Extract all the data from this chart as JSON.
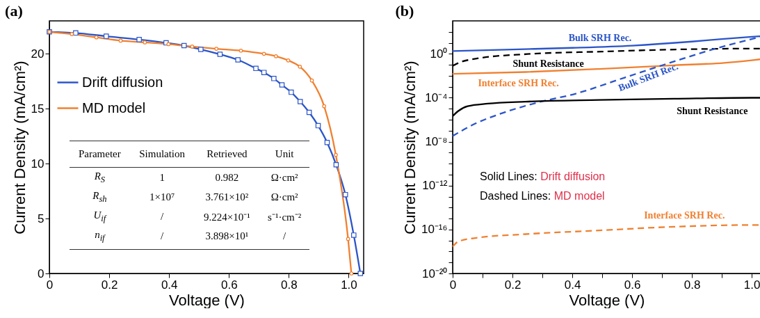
{
  "chart_data": [
    {
      "type": "line",
      "title": "(a)",
      "xlabel": "Voltage (V)",
      "ylabel": "Current Density (mA/cm²)",
      "xlim": [
        0,
        1.05
      ],
      "xticks": [
        0,
        0.2,
        0.4,
        0.6,
        0.8,
        {
          "value": 1,
          "label": "1.0"
        }
      ],
      "ylim": [
        0,
        23
      ],
      "yticks": [
        0,
        5,
        10,
        15,
        20
      ],
      "grid": false,
      "legend": "top left",
      "series": [
        {
          "name": "Drift diffusion",
          "color": "#2b55c8",
          "marker": "square",
          "line_style": "solid",
          "x": [
            0,
            0.088,
            0.19,
            0.3,
            0.39,
            0.45,
            0.506,
            0.57,
            0.63,
            0.69,
            0.717,
            0.75,
            0.777,
            0.808,
            0.838,
            0.868,
            0.898,
            0.928,
            0.958,
            0.989,
            1.017,
            1.039
          ],
          "values": [
            22.0,
            21.9,
            21.6,
            21.3,
            21.0,
            20.75,
            20.4,
            19.96,
            19.45,
            18.67,
            18.3,
            17.75,
            17.17,
            16.5,
            15.65,
            14.67,
            13.46,
            11.93,
            9.9,
            7.18,
            3.49,
            0
          ]
        },
        {
          "name": "MD model",
          "color": "#f08030",
          "marker": "circle",
          "line_style": "solid",
          "x": [
            0,
            0.075,
            0.157,
            0.238,
            0.319,
            0.398,
            0.477,
            0.558,
            0.64,
            0.717,
            0.757,
            0.798,
            0.837,
            0.877,
            0.918,
            0.957,
            0.998,
            1.009
          ],
          "values": [
            22.0,
            21.8,
            21.5,
            21.2,
            21.04,
            20.88,
            20.66,
            20.46,
            20.29,
            20.0,
            19.78,
            19.4,
            18.83,
            17.57,
            15.23,
            10.8,
            3.14,
            0
          ]
        }
      ],
      "annotations": [
        "Parameter",
        "Simulation",
        "Retrieved",
        "Unit",
        "R$_{S}$",
        "1",
        "0.982",
        "Ω·cm²",
        "R$_{sh}$",
        "1×10⁷",
        "3.761×10²",
        "Ω·cm²",
        "U$_{if}$",
        "/",
        "9.224×10⁻¹",
        "s⁻¹·cm⁻²",
        "n$_{if}$",
        "/",
        "3.898×10¹",
        "/"
      ]
    },
    {
      "type": "line",
      "title": "(b)",
      "xlabel": "Voltage (V)",
      "ylabel": "Current Density (mA/cm²)",
      "log": "y",
      "xlim": [
        0,
        1.03
      ],
      "xticks": [
        0,
        {
          "value": 0.1,
          "label": null
        },
        0.2,
        {
          "value": 0.3,
          "label": null
        },
        0.4,
        {
          "value": 0.5,
          "label": null
        },
        0.6,
        {
          "value": 0.7,
          "label": null
        },
        0.8,
        {
          "value": 0.9,
          "label": null
        },
        {
          "value": 1,
          "label": "1.0"
        }
      ],
      "ylim": [
        1e-20,
        1000
      ],
      "yticks": [
        {
          "value": 1e-20,
          "label": "10⁻²⁰"
        },
        {
          "value": 1e-19,
          "label": null
        },
        {
          "value": 1e-18,
          "label": null
        },
        {
          "value": 1e-17,
          "label": null
        },
        {
          "value": 1e-16,
          "label": "10⁻¹⁶"
        },
        {
          "value": 1e-15,
          "label": null
        },
        {
          "value": 1e-14,
          "label": null
        },
        {
          "value": 1e-13,
          "label": null
        },
        {
          "value": 1e-12,
          "label": "10⁻¹²"
        },
        {
          "value": 1e-11,
          "label": null
        },
        {
          "value": 1e-10,
          "label": null
        },
        {
          "value": 1e-09,
          "label": null
        },
        {
          "value": 1e-08,
          "label": "10⁻⁸"
        },
        {
          "value": 1e-07,
          "label": null
        },
        {
          "value": 1e-06,
          "label": null
        },
        {
          "value": 1e-05,
          "label": null
        },
        {
          "value": 0.0001,
          "label": "10⁻⁴"
        },
        {
          "value": 0.001,
          "label": null
        },
        {
          "value": 0.01,
          "label": null
        },
        {
          "value": 0.1,
          "label": null
        },
        {
          "value": 1,
          "label": "10⁰"
        },
        {
          "value": 10,
          "label": null
        },
        {
          "value": 100,
          "label": null
        }
      ],
      "grid": false,
      "legend": false,
      "series": [
        {
          "name": "Bulk SRH Rec.",
          "color": "#2b55c8",
          "line_style": "solid",
          "x": [
            0,
            0.2,
            0.4,
            0.6,
            0.8,
            0.9,
            1.0,
            1.03
          ],
          "values": [
            1.8,
            2.5,
            3.5,
            5.6,
            13,
            22,
            35,
            40
          ]
        },
        {
          "name": "Shunt Resistance",
          "color": "#000000",
          "line_style": "dashed",
          "x": [
            0,
            0.02,
            0.08,
            0.25,
            0.5,
            0.75,
            1.0,
            1.03
          ],
          "values": [
            0.08,
            0.15,
            0.37,
            0.95,
            1.6,
            2.5,
            3.0,
            3.0
          ]
        },
        {
          "name": "Interface SRH Rec.",
          "color": "#f08030",
          "line_style": "solid",
          "x": [
            0,
            0.243,
            0.49,
            0.74,
            0.908,
            1.0,
            1.03
          ],
          "values": [
            0.015,
            0.022,
            0.042,
            0.091,
            0.15,
            0.26,
            0.32
          ]
        },
        {
          "name": "Bulk SRH Rec.",
          "color": "#2b55c8",
          "line_style": "dashed",
          "x": [
            0,
            0.076,
            0.16,
            0.284,
            0.41,
            0.575,
            0.74,
            0.908,
            1.0,
            1.03
          ],
          "values": [
            3.3e-08,
            4.5e-07,
            3.5e-06,
            3.7e-05,
            0.00023,
            0.0068,
            0.2,
            5,
            22,
            37
          ]
        },
        {
          "name": "Shunt Resistance",
          "color": "#000000",
          "line_style": "solid",
          "x": [
            0,
            0.018,
            0.05,
            0.118,
            0.243,
            0.49,
            0.74,
            1.0,
            1.03
          ],
          "values": [
            2.1e-06,
            6e-06,
            1.7e-05,
            2.9e-05,
            4.4e-05,
            6.3e-05,
            8.1e-05,
            0.0001,
            0.0001
          ]
        },
        {
          "name": "Interface SRH Rec.",
          "color": "#f08030",
          "line_style": "dashed",
          "x": [
            0,
            0.018,
            0.076,
            0.243,
            0.49,
            0.74,
            1.0,
            1.03
          ],
          "values": [
            2.8e-18,
            7.9e-18,
            1.7e-17,
            3.8e-17,
            8.3e-17,
            1.8e-16,
            2.6e-16,
            2.6e-16
          ]
        }
      ],
      "annotations": [
        "Solid Lines: Drift diffusion",
        "Dashed Lines: MD model"
      ]
    }
  ]
}
